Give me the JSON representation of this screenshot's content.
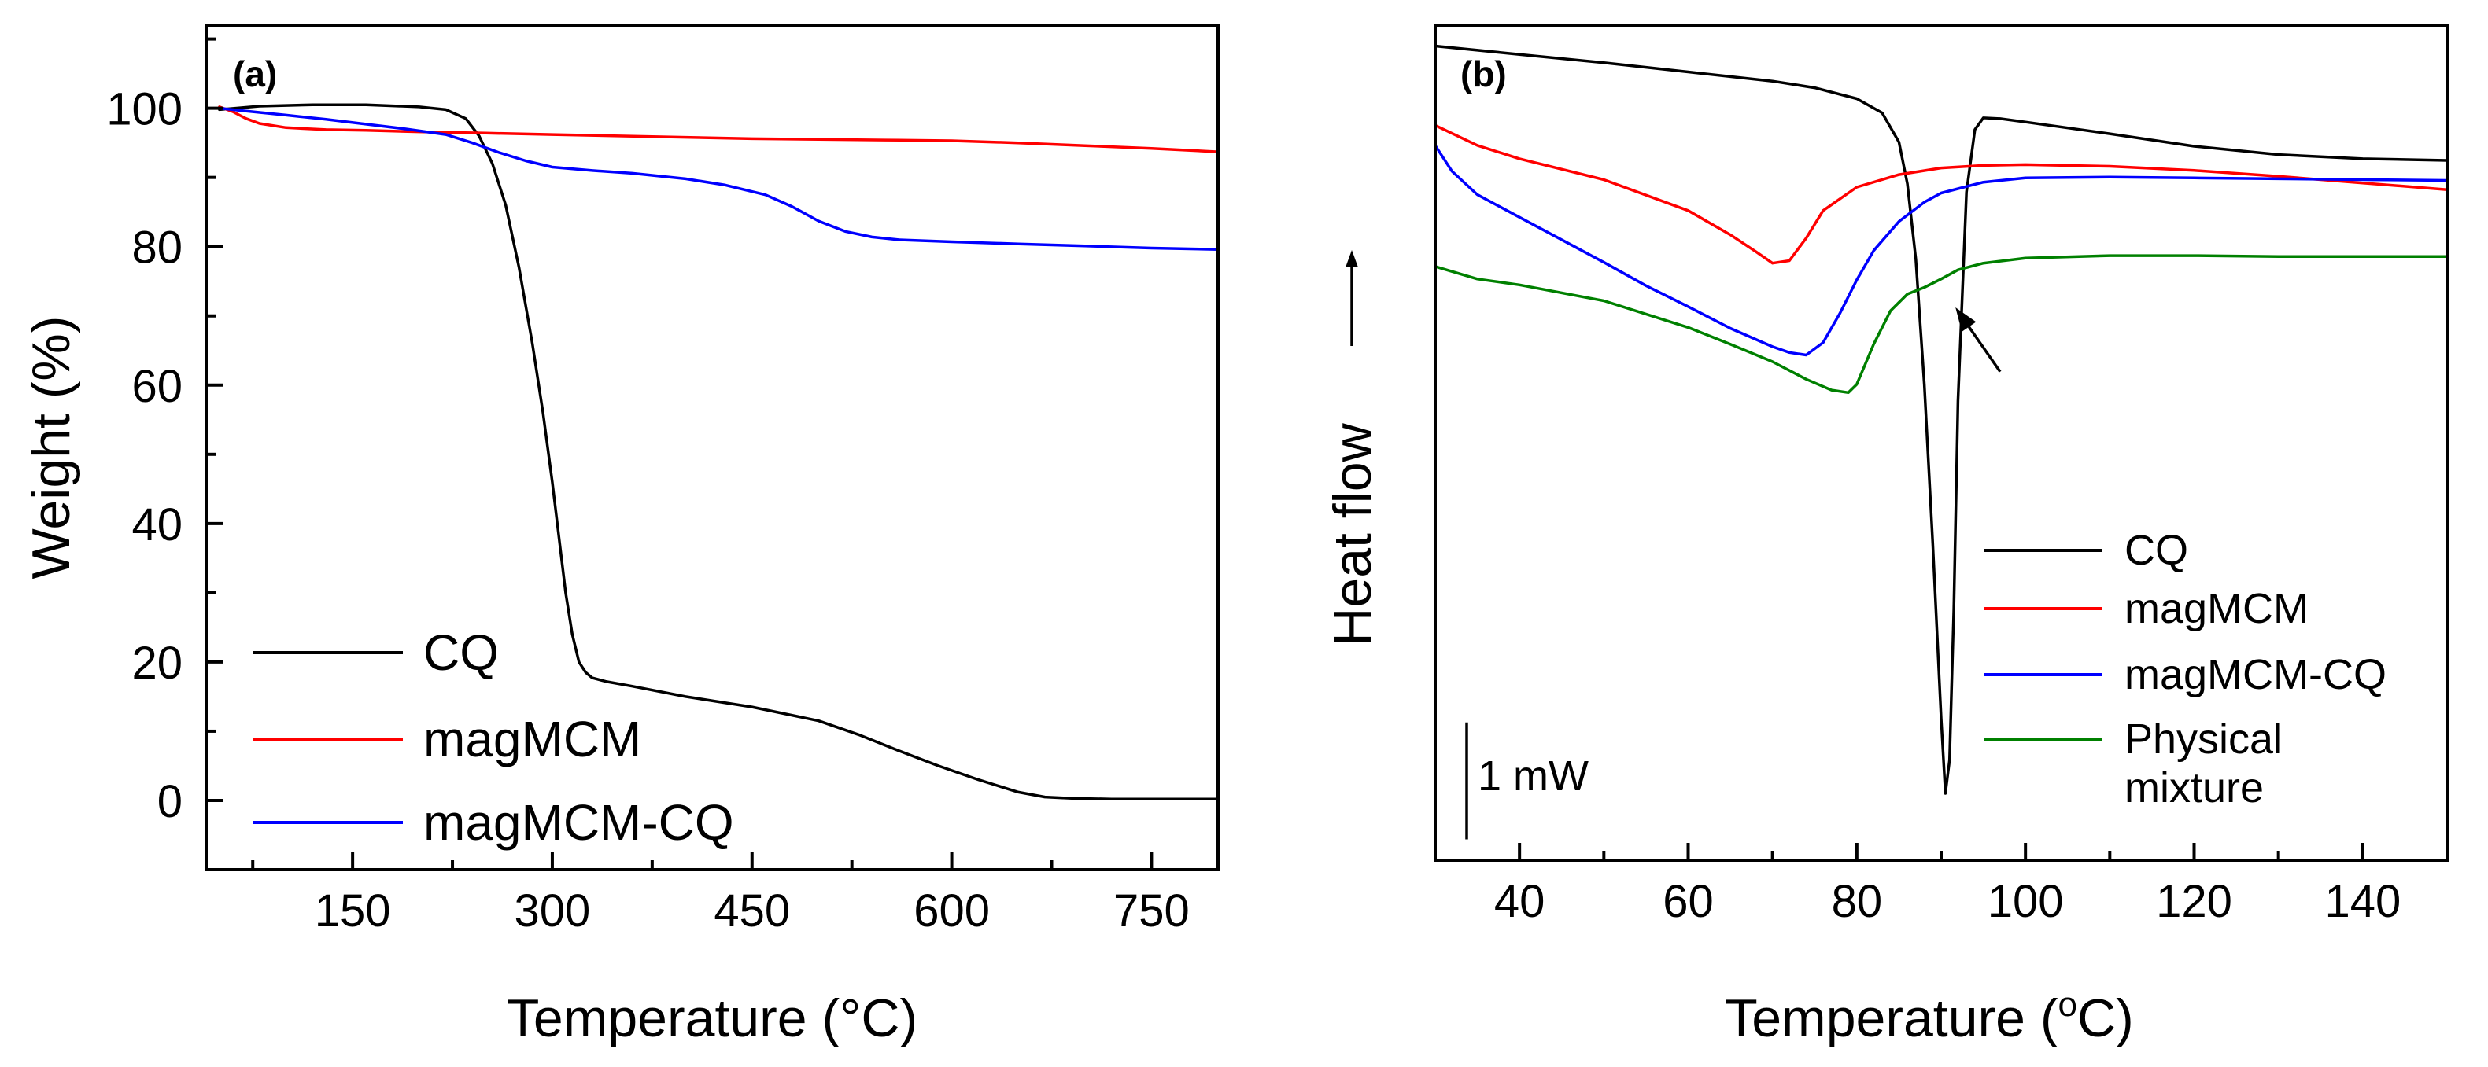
{
  "chart_data": [
    {
      "panel": "(a)",
      "type": "line",
      "xlabel_text": "Temperature (",
      "xlabel_unit": "°C)",
      "ylabel": "Weight (%)",
      "xlim": [
        40,
        800
      ],
      "ylim": [
        -10,
        112
      ],
      "xticks": [
        150,
        300,
        450,
        600,
        750
      ],
      "xticks_minor": [
        75,
        225,
        375,
        525,
        675
      ],
      "yticks": [
        0,
        20,
        40,
        60,
        80,
        100
      ],
      "yticks_minor": [
        10,
        30,
        50,
        70,
        90,
        110
      ],
      "legend_position": "bottom-left",
      "series": [
        {
          "name": "CQ",
          "color": "#000000",
          "x": [
            50,
            80,
            120,
            160,
            200,
            220,
            235,
            245,
            255,
            265,
            275,
            285,
            293,
            300,
            305,
            310,
            315,
            320,
            325,
            330,
            340,
            360,
            400,
            450,
            500,
            530,
            560,
            590,
            620,
            650,
            670,
            690,
            720,
            800
          ],
          "y": [
            99.8,
            100.3,
            100.5,
            100.5,
            100.2,
            99.8,
            98.5,
            96,
            92,
            86,
            77,
            66,
            56,
            46,
            38,
            30,
            24,
            20,
            18.5,
            17.7,
            17.2,
            16.5,
            15,
            13.5,
            11.5,
            9.5,
            7.2,
            5,
            3,
            1.2,
            0.5,
            0.3,
            0.2,
            0.2
          ]
        },
        {
          "name": "magMCM",
          "color": "#ff0000",
          "x": [
            50,
            60,
            70,
            80,
            100,
            130,
            160,
            200,
            250,
            300,
            350,
            400,
            450,
            500,
            550,
            600,
            650,
            700,
            750,
            800
          ],
          "y": [
            100.2,
            99.5,
            98.5,
            97.8,
            97.2,
            96.9,
            96.8,
            96.6,
            96.4,
            96.2,
            96.0,
            95.8,
            95.6,
            95.5,
            95.4,
            95.3,
            95.0,
            94.6,
            94.2,
            93.7
          ]
        },
        {
          "name": "magMCM-CQ",
          "color": "#0000ff",
          "x": [
            50,
            70,
            100,
            130,
            160,
            190,
            220,
            240,
            260,
            280,
            300,
            330,
            360,
            400,
            430,
            460,
            480,
            500,
            520,
            540,
            560,
            600,
            650,
            700,
            750,
            800
          ],
          "y": [
            100.0,
            99.6,
            99.0,
            98.4,
            97.7,
            97.0,
            96.2,
            95.0,
            93.6,
            92.4,
            91.5,
            91.0,
            90.6,
            89.8,
            88.9,
            87.5,
            85.8,
            83.7,
            82.2,
            81.4,
            81.0,
            80.7,
            80.4,
            80.1,
            79.8,
            79.6
          ]
        }
      ]
    },
    {
      "panel": "(b)",
      "type": "line",
      "xlabel_text": "Temperature (",
      "xlabel_sup": "o",
      "xlabel_unit": "C)",
      "ylabel": "Heat flow",
      "xlim": [
        30,
        150
      ],
      "ylim": [
        0,
        100
      ],
      "y_hidden": true,
      "xticks": [
        40,
        60,
        80,
        100,
        120,
        140
      ],
      "xticks_minor": [
        30,
        50,
        70,
        90,
        110,
        130,
        150
      ],
      "scale_bar_label": "1 mW",
      "scale_bar_y": [
        2.5,
        16.5
      ],
      "arrow_from": [
        97,
        58.5
      ],
      "arrow_to": [
        91.7,
        66.2
      ],
      "legend_position": "bottom-right",
      "series": [
        {
          "name": "CQ",
          "color": "#000000",
          "x": [
            30,
            40,
            50,
            60,
            70,
            75,
            80,
            83,
            85,
            86,
            87,
            88,
            89,
            90,
            90.5,
            91,
            91.5,
            92,
            93,
            94,
            95,
            97,
            100,
            110,
            120,
            130,
            140,
            150
          ],
          "y": [
            97.5,
            96.5,
            95.5,
            94.4,
            93.3,
            92.5,
            91.2,
            89.5,
            86,
            81,
            72,
            57,
            38,
            17,
            8,
            12,
            30,
            55,
            80,
            87.5,
            88.9,
            88.8,
            88.4,
            87.0,
            85.5,
            84.5,
            84.0,
            83.8
          ]
        },
        {
          "name": "magMCM",
          "color": "#ff0000",
          "x": [
            30,
            35,
            40,
            50,
            60,
            65,
            68,
            70,
            72,
            74,
            76,
            80,
            85,
            90,
            95,
            100,
            110,
            120,
            130,
            140,
            150
          ],
          "y": [
            88.0,
            85.6,
            84.0,
            81.5,
            77.8,
            74.9,
            72.9,
            71.5,
            71.8,
            74.5,
            77.8,
            80.6,
            82.1,
            82.9,
            83.2,
            83.3,
            83.1,
            82.6,
            81.9,
            81.1,
            80.3
          ]
        },
        {
          "name": "magMCM-CQ",
          "color": "#0000ff",
          "x": [
            30,
            32,
            35,
            40,
            45,
            50,
            55,
            60,
            65,
            70,
            72,
            74,
            76,
            78,
            80,
            82,
            85,
            88,
            90,
            95,
            100,
            110,
            120,
            130,
            140,
            150
          ],
          "y": [
            85.6,
            82.5,
            79.7,
            77.0,
            74.3,
            71.6,
            68.8,
            66.3,
            63.7,
            61.5,
            60.8,
            60.5,
            62.0,
            65.5,
            69.5,
            73.0,
            76.5,
            78.8,
            79.9,
            81.2,
            81.7,
            81.8,
            81.7,
            81.6,
            81.5,
            81.4
          ]
        },
        {
          "name": "Physical\nmixture",
          "name_lines": [
            "Physical",
            "mixture"
          ],
          "color": "#008000",
          "x": [
            30,
            35,
            40,
            50,
            60,
            65,
            70,
            74,
            77,
            79,
            80,
            82,
            84,
            86,
            88,
            90,
            92,
            95,
            100,
            110,
            120,
            130,
            140,
            150
          ],
          "y": [
            71.1,
            69.6,
            68.9,
            67.0,
            63.8,
            61.8,
            59.7,
            57.6,
            56.3,
            56.0,
            57.0,
            61.8,
            65.8,
            67.8,
            68.6,
            69.6,
            70.7,
            71.5,
            72.1,
            72.4,
            72.4,
            72.3,
            72.3,
            72.3
          ]
        }
      ]
    }
  ],
  "legend_a": {
    "items": [
      "CQ",
      "magMCM",
      "magMCM-CQ"
    ]
  },
  "legend_b": {
    "items": [
      "CQ",
      "magMCM",
      "magMCM-CQ"
    ],
    "multiline_item": [
      "Physical",
      "mixture"
    ]
  }
}
